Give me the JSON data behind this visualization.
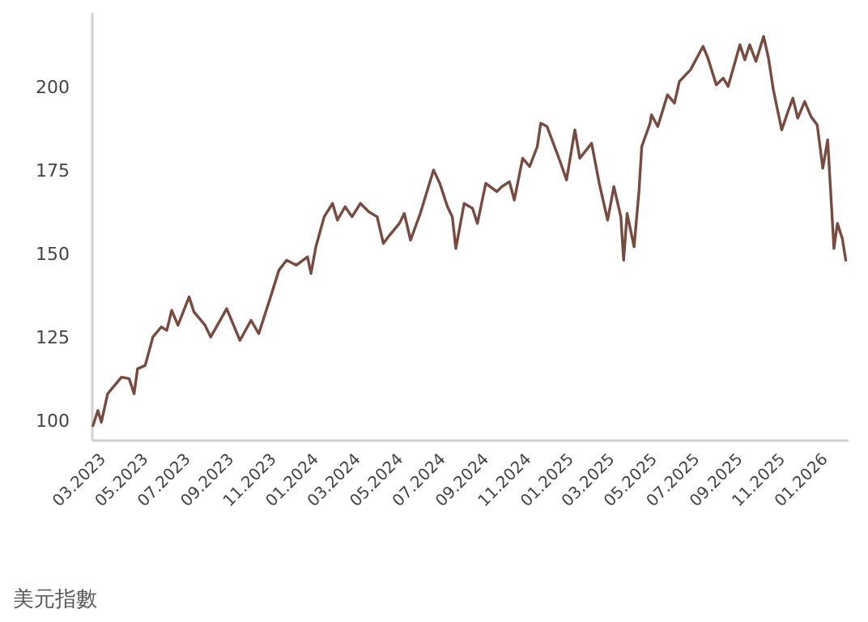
{
  "chart_data": {
    "type": "line",
    "annotations": [
      "美元指數"
    ],
    "x": [
      "2023-02-19",
      "2023-02-26",
      "2023-03-03",
      "2023-03-12",
      "2023-03-24",
      "2023-04-01",
      "2023-04-12",
      "2023-04-19",
      "2023-04-24",
      "2023-05-05",
      "2023-05-16",
      "2023-05-28",
      "2023-06-05",
      "2023-06-12",
      "2023-06-21",
      "2023-07-07",
      "2023-07-14",
      "2023-07-30",
      "2023-08-07",
      "2023-08-30",
      "2023-09-18",
      "2023-10-04",
      "2023-10-15",
      "2023-11-01",
      "2023-11-13",
      "2023-11-24",
      "2023-12-08",
      "2023-12-24",
      "2023-12-29",
      "2024-01-05",
      "2024-01-17",
      "2024-01-29",
      "2024-02-05",
      "2024-02-16",
      "2024-02-26",
      "2024-03-09",
      "2024-03-21",
      "2024-04-02",
      "2024-04-11",
      "2024-04-18",
      "2024-05-04",
      "2024-05-11",
      "2024-05-20",
      "2024-06-03",
      "2024-06-22",
      "2024-07-01",
      "2024-07-12",
      "2024-07-19",
      "2024-07-24",
      "2024-08-05",
      "2024-08-17",
      "2024-08-24",
      "2024-09-05",
      "2024-09-21",
      "2024-09-28",
      "2024-10-09",
      "2024-10-16",
      "2024-10-28",
      "2024-11-07",
      "2024-11-18",
      "2024-11-23",
      "2024-12-02",
      "2024-12-11",
      "2024-12-20",
      "2024-12-30",
      "2025-01-11",
      "2025-01-18",
      "2025-02-04",
      "2025-02-15",
      "2025-02-27",
      "2025-03-08",
      "2025-03-18",
      "2025-03-22",
      "2025-03-27",
      "2025-04-06",
      "2025-04-13",
      "2025-04-17",
      "2025-04-29",
      "2025-05-01",
      "2025-05-10",
      "2025-05-24",
      "2025-06-03",
      "2025-06-10",
      "2025-06-26",
      "2025-07-14",
      "2025-07-21",
      "2025-08-02",
      "2025-08-12",
      "2025-08-19",
      "2025-09-05",
      "2025-09-12",
      "2025-09-19",
      "2025-09-28",
      "2025-10-09",
      "2025-10-16",
      "2025-10-23",
      "2025-11-04",
      "2025-11-13",
      "2025-11-20",
      "2025-11-27",
      "2025-12-07",
      "2025-12-16",
      "2025-12-25",
      "2026-01-02",
      "2026-01-09",
      "2026-01-18",
      "2026-01-23",
      "2026-01-30",
      "2026-02-04"
    ],
    "series": [
      {
        "color": "#7b4a3f",
        "values": [
          98.5,
          103,
          99.5,
          108,
          111,
          113,
          112.5,
          108,
          115.5,
          116.5,
          125,
          128,
          127,
          133,
          128.5,
          137,
          132.5,
          128.5,
          125,
          133.5,
          124,
          130,
          126,
          137,
          145,
          148,
          146.5,
          149,
          144,
          152,
          161,
          165,
          160,
          164,
          161,
          165,
          162.5,
          161,
          153,
          155,
          159,
          162,
          154,
          162,
          175,
          171,
          164,
          161,
          151.5,
          165,
          163.5,
          159,
          171,
          168.5,
          170,
          171.5,
          166,
          178.5,
          176,
          182,
          189,
          188,
          183,
          178,
          172,
          187,
          178.5,
          183,
          171,
          160,
          170,
          161,
          148,
          162,
          152,
          168.5,
          182,
          189,
          191.5,
          188,
          197.5,
          195,
          201.5,
          205,
          212,
          208.5,
          200.5,
          202.5,
          200,
          212.5,
          208,
          212.5,
          207.5,
          215,
          208.5,
          199,
          187,
          192.5,
          196.5,
          190.5,
          195.5,
          191,
          188.5,
          175.5,
          184,
          151.5,
          159,
          154.5,
          148
        ]
      }
    ],
    "xlim": [
      "2023-02-18",
      "2026-02-08"
    ],
    "xticks": [
      {
        "value": "2023-03-01",
        "label": "03.2023"
      },
      {
        "value": "2023-05-01",
        "label": "05.2023"
      },
      {
        "value": "2023-07-01",
        "label": "07.2023"
      },
      {
        "value": "2023-09-01",
        "label": "09.2023"
      },
      {
        "value": "2023-11-01",
        "label": "11.2023"
      },
      {
        "value": "2024-01-01",
        "label": "01.2024"
      },
      {
        "value": "2024-03-01",
        "label": "03.2024"
      },
      {
        "value": "2024-05-01",
        "label": "05.2024"
      },
      {
        "value": "2024-07-01",
        "label": "07.2024"
      },
      {
        "value": "2024-09-01",
        "label": "09.2024"
      },
      {
        "value": "2024-11-01",
        "label": "11.2024"
      },
      {
        "value": "2025-01-01",
        "label": "01.2025"
      },
      {
        "value": "2025-03-01",
        "label": "03.2025"
      },
      {
        "value": "2025-05-01",
        "label": "05.2025"
      },
      {
        "value": "2025-07-01",
        "label": "07.2025"
      },
      {
        "value": "2025-09-01",
        "label": "09.2025"
      },
      {
        "value": "2025-11-01",
        "label": "11.2025"
      },
      {
        "value": "2026-01-01",
        "label": "01.2026"
      }
    ],
    "ylim": [
      94,
      222
    ],
    "yticks": [
      100,
      125,
      150,
      175,
      200
    ],
    "grid": false,
    "marker": "none",
    "line_style": "solid"
  }
}
